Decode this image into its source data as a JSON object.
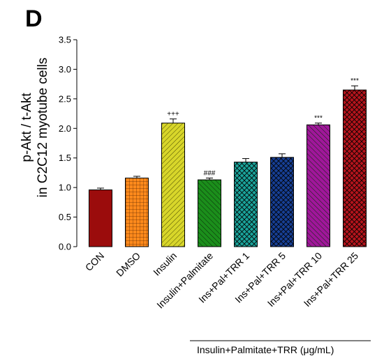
{
  "panel_letter": "D",
  "chart_data": {
    "type": "bar",
    "title": "",
    "ylabel_line1": "p-Akt / t-Akt",
    "ylabel_line2": "in C2C12 myotube cells",
    "xlabel": "",
    "ylim": [
      0,
      3.5
    ],
    "yticks": [
      0.0,
      0.5,
      1.0,
      1.5,
      2.0,
      2.5,
      3.0,
      3.5
    ],
    "ytick_labels": [
      "0.0",
      "0.5",
      "1.0",
      "1.5",
      "2.0",
      "2.5",
      "3.0",
      "3.5"
    ],
    "categories": [
      "CON",
      "DMSO",
      "Insulin",
      "Insulin+Palmitate",
      "Ins+Pal+TRR 1",
      "Ins+Pal+TRR 5",
      "Ins+Pal+TRR 10",
      "Ins+Pal+TRR 25"
    ],
    "values": [
      0.96,
      1.16,
      2.09,
      1.13,
      1.43,
      1.51,
      2.06,
      2.65
    ],
    "errors": [
      0.03,
      0.03,
      0.07,
      0.03,
      0.06,
      0.06,
      0.03,
      0.07
    ],
    "significance": [
      "",
      "",
      "+++",
      "###",
      "",
      "",
      "***",
      "***"
    ],
    "colors": [
      "#9b0c0c",
      "#ff8a1c",
      "#d8d62a",
      "#1b8e1b",
      "#1aa39a",
      "#173f95",
      "#a0169a",
      "#b5141c"
    ],
    "patterns": [
      "solid",
      "grid",
      "diag-right",
      "diag-left",
      "crosshatch",
      "crosshatch",
      "diag-left",
      "crosshatch"
    ],
    "group_bracket_label": "Insulin+Palmitate+TRR  (μg/mL)"
  }
}
